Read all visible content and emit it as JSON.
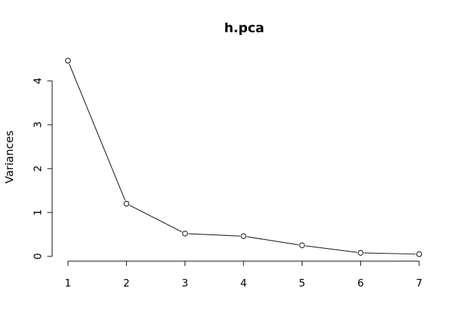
{
  "chart_data": {
    "type": "line",
    "title": "h.pca",
    "xlabel": "",
    "ylabel": "Variances",
    "x": [
      1,
      2,
      3,
      4,
      5,
      6,
      7
    ],
    "values": [
      4.46,
      1.2,
      0.52,
      0.46,
      0.25,
      0.08,
      0.05
    ],
    "xlim": [
      1,
      7
    ],
    "ylim": [
      0,
      4
    ],
    "xticks": [
      1,
      2,
      3,
      4,
      5,
      6,
      7
    ],
    "yticks": [
      0,
      1,
      2,
      3,
      4
    ],
    "grid": false,
    "marker": "open-circle",
    "line_color": "#000000"
  }
}
